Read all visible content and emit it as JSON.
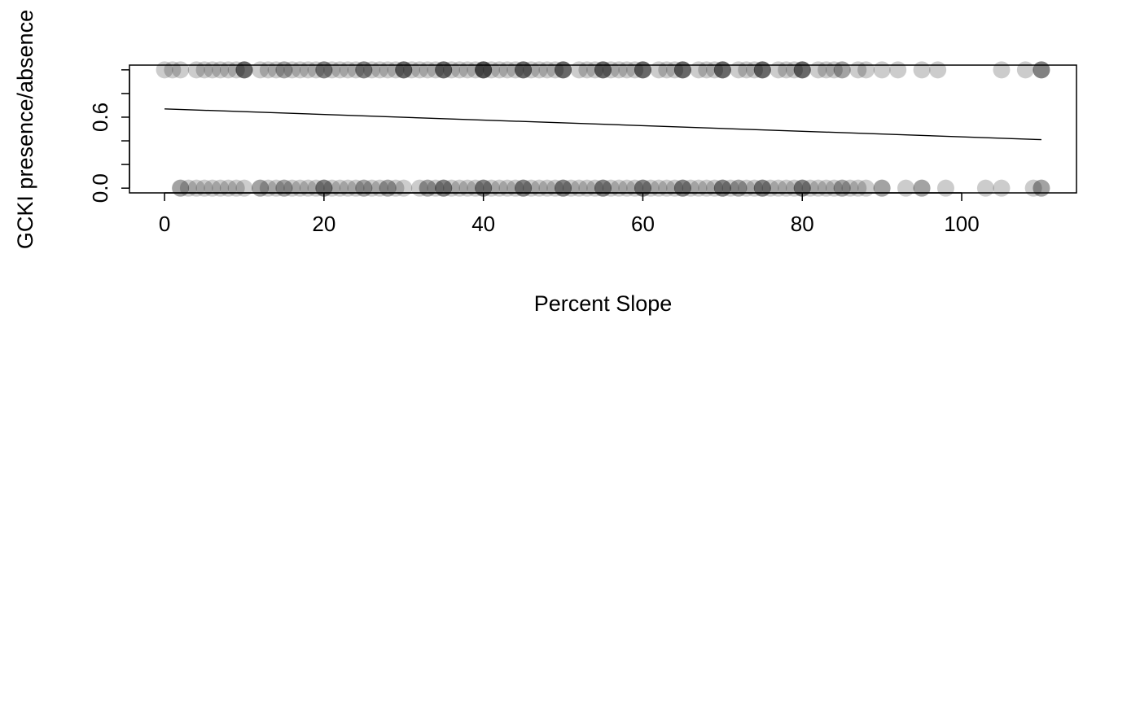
{
  "chart_data": {
    "type": "scatter",
    "xlabel": "Percent Slope",
    "ylabel": "GCKI presence/absence",
    "xlim": [
      -4.4,
      114.4
    ],
    "ylim": [
      -0.04,
      1.04
    ],
    "x_ticks": [
      0,
      20,
      40,
      60,
      80,
      100
    ],
    "x_tick_labels": [
      "0",
      "20",
      "40",
      "60",
      "80",
      "100"
    ],
    "y_ticks": [
      0.0,
      0.2,
      0.4,
      0.6,
      0.8,
      1.0
    ],
    "y_tick_labels": [
      "0.0",
      "",
      "",
      "0.6",
      "",
      ""
    ],
    "grid": false,
    "legend": "none",
    "point_color": "#000000",
    "point_alpha": 0.2,
    "line_color": "#000000",
    "points": {
      "presence_y": 1,
      "presence_x": [
        0,
        1,
        2,
        4,
        5,
        6,
        7,
        8,
        9,
        10,
        10,
        10,
        10,
        12,
        13,
        14,
        15,
        15,
        16,
        17,
        18,
        19,
        20,
        20,
        20,
        21,
        22,
        23,
        24,
        25,
        25,
        25,
        26,
        27,
        28,
        29,
        30,
        30,
        30,
        30,
        31,
        32,
        33,
        34,
        35,
        35,
        35,
        35,
        36,
        37,
        38,
        39,
        40,
        40,
        40,
        40,
        40,
        41,
        42,
        43,
        44,
        45,
        45,
        45,
        45,
        46,
        47,
        48,
        49,
        50,
        50,
        50,
        50,
        52,
        53,
        54,
        55,
        55,
        55,
        55,
        56,
        57,
        58,
        59,
        60,
        60,
        60,
        60,
        62,
        63,
        64,
        65,
        65,
        65,
        65,
        67,
        68,
        69,
        70,
        70,
        70,
        70,
        72,
        73,
        74,
        75,
        75,
        75,
        75,
        77,
        78,
        79,
        80,
        80,
        80,
        80,
        82,
        83,
        84,
        85,
        85,
        87,
        88,
        90,
        92,
        95,
        97,
        105,
        108,
        110,
        110,
        110
      ],
      "absence_y": 0,
      "absence_x": [
        2,
        2,
        3,
        4,
        5,
        6,
        7,
        8,
        9,
        10,
        12,
        12,
        13,
        14,
        15,
        15,
        16,
        17,
        18,
        19,
        20,
        20,
        20,
        21,
        22,
        23,
        24,
        25,
        25,
        26,
        27,
        28,
        28,
        29,
        30,
        32,
        33,
        33,
        34,
        35,
        35,
        35,
        36,
        37,
        38,
        39,
        40,
        40,
        40,
        41,
        42,
        43,
        44,
        45,
        45,
        45,
        46,
        47,
        48,
        49,
        50,
        50,
        50,
        51,
        52,
        53,
        54,
        55,
        55,
        55,
        56,
        57,
        58,
        59,
        60,
        60,
        60,
        61,
        62,
        63,
        64,
        65,
        65,
        65,
        66,
        67,
        68,
        69,
        70,
        70,
        70,
        71,
        72,
        72,
        73,
        74,
        75,
        75,
        75,
        76,
        77,
        78,
        79,
        80,
        80,
        80,
        81,
        82,
        83,
        84,
        85,
        85,
        86,
        87,
        88,
        90,
        90,
        93,
        95,
        95,
        98,
        103,
        105,
        109,
        110,
        110
      ]
    },
    "fit_line": {
      "x": [
        0,
        110
      ],
      "y": [
        0.67,
        0.41
      ]
    }
  }
}
